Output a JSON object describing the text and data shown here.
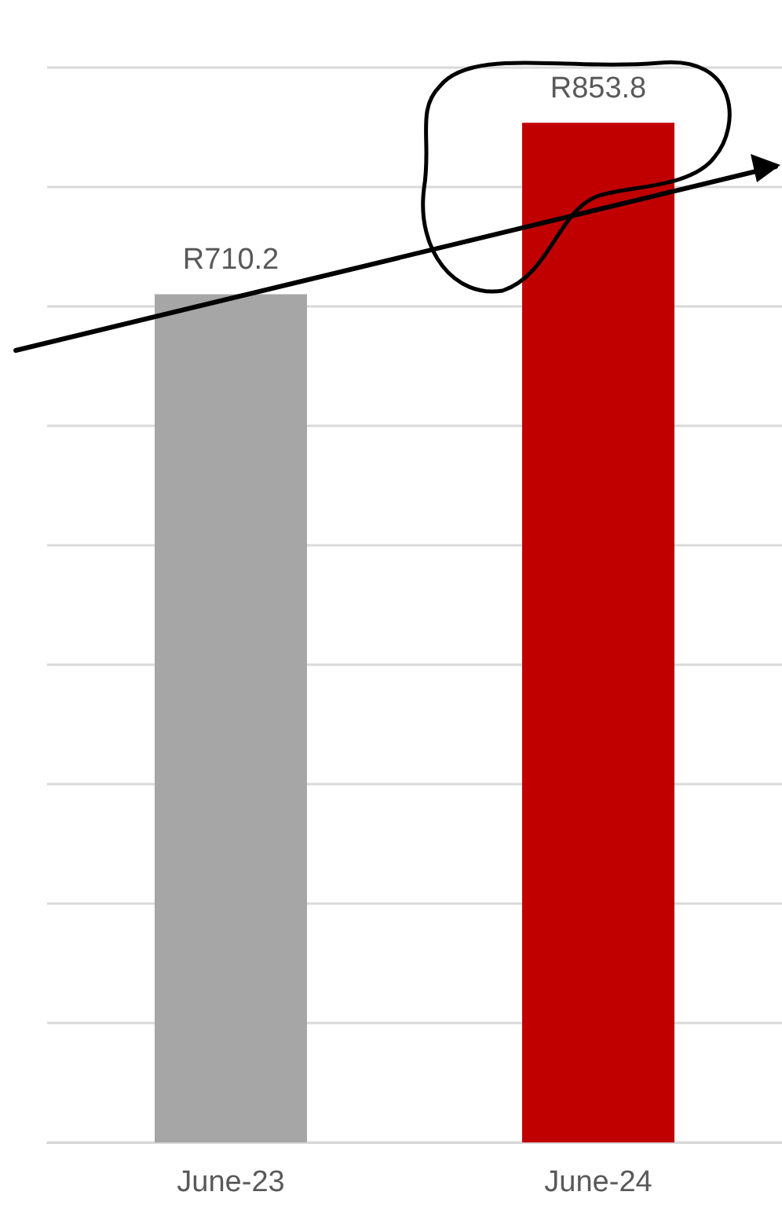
{
  "chart_data": {
    "type": "bar",
    "categories": [
      "June-23",
      "June-24"
    ],
    "values": [
      710.2,
      853.8
    ],
    "colors": [
      "#a6a6a6",
      "#c00000"
    ],
    "value_labels": [
      "R710.2",
      "R853.8"
    ],
    "ylim": [
      0,
      900
    ],
    "yticks": [
      0,
      100,
      200,
      300,
      400,
      500,
      600,
      700,
      800,
      900
    ],
    "tick_labels": "x",
    "grid": "y"
  }
}
